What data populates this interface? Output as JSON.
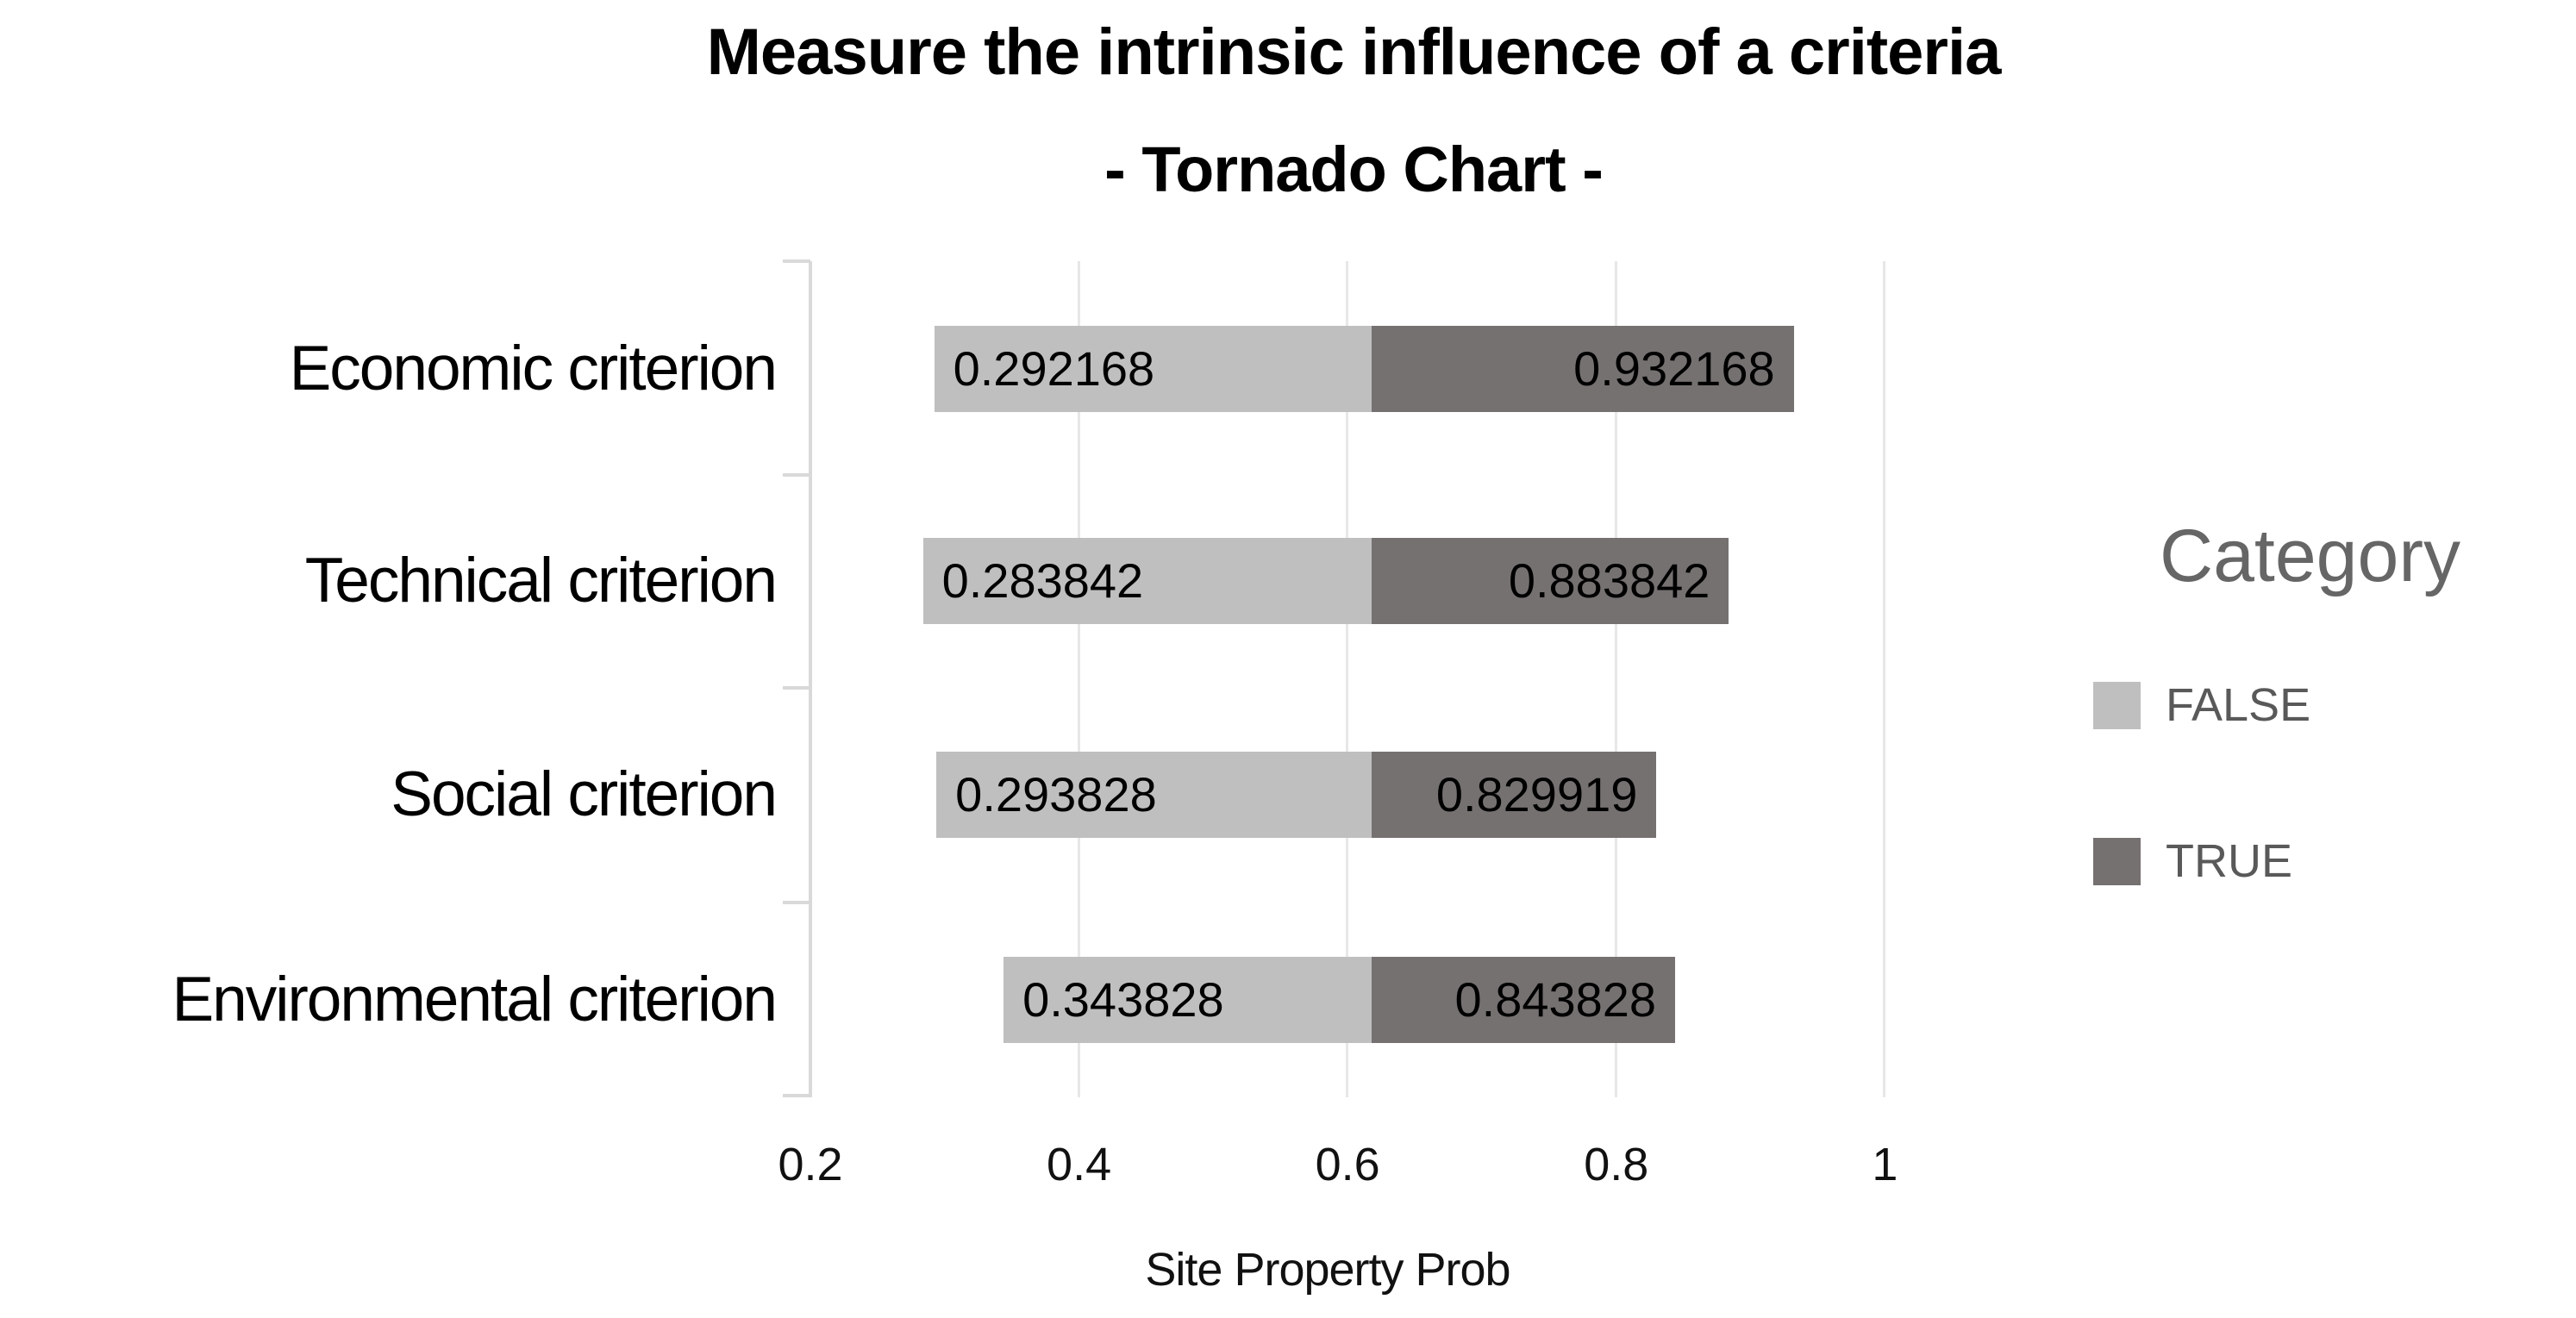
{
  "title": {
    "line1": "Measure the intrinsic influence of a criteria",
    "line2": "- Tornado Chart -"
  },
  "axis": {
    "x_label": "Site Property Prob",
    "x_tick_labels": [
      "0.2",
      "0.4",
      "0.6",
      "0.8",
      "1"
    ]
  },
  "legend": {
    "title": "Category",
    "items": [
      {
        "label": "FALSE",
        "color": "#BFBFBF"
      },
      {
        "label": "TRUE",
        "color": "#767171"
      }
    ]
  },
  "rows": [
    {
      "category": "Economic criterion",
      "false_label": "0.292168",
      "true_label": "0.932168"
    },
    {
      "category": "Technical criterion",
      "false_label": "0.283842",
      "true_label": "0.883842"
    },
    {
      "category": "Social criterion",
      "false_label": "0.293828",
      "true_label": "0.829919"
    },
    {
      "category": "Environmental criterion",
      "false_label": "0.343828",
      "true_label": "0.843828"
    }
  ],
  "chart_data": {
    "type": "bar",
    "subtype": "tornado",
    "orientation": "horizontal",
    "title": "Measure the intrinsic influence of a criteria",
    "subtitle": "- Tornado Chart -",
    "xlabel": "Site Property Prob",
    "ylabel": "",
    "xlim": [
      0.2,
      1.05
    ],
    "x_ticks": [
      0.2,
      0.4,
      0.6,
      0.8,
      1
    ],
    "base_value": 0.618,
    "grid": true,
    "legend_title": "Category",
    "legend_position": "right",
    "categories": [
      "Economic criterion",
      "Technical criterion",
      "Social criterion",
      "Environmental criterion"
    ],
    "series": [
      {
        "name": "FALSE",
        "color": "#BFBFBF",
        "values": [
          0.292168,
          0.283842,
          0.293828,
          0.343828
        ]
      },
      {
        "name": "TRUE",
        "color": "#767171",
        "values": [
          0.932168,
          0.883842,
          0.829919,
          0.843828
        ]
      }
    ]
  }
}
